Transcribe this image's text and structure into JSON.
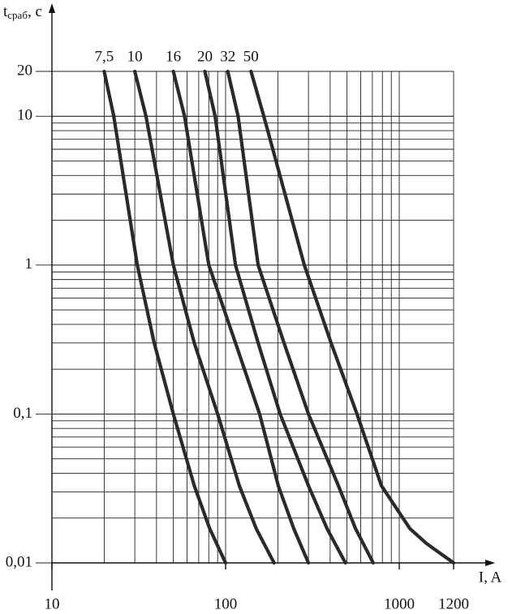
{
  "chart_data": {
    "type": "line",
    "xlabel": "I, A",
    "ylabel": {
      "symbol": "t",
      "subscript": "сраб",
      "unit": ", с"
    },
    "log_x": true,
    "log_y": true,
    "grid": true,
    "xlim": [
      10,
      1200
    ],
    "ylim": [
      0.01,
      20
    ],
    "xticks": [
      10,
      100,
      1000,
      1200
    ],
    "yticks": [
      {
        "value": 0.01,
        "label": "0,01"
      },
      {
        "value": 0.1,
        "label": "0,1"
      },
      1,
      10,
      20
    ],
    "series": [
      {
        "name": "7,5",
        "color": "#2a2a2a",
        "x": [
          20,
          22.7,
          31,
          38.8,
          50,
          66,
          81,
          100
        ],
        "values": [
          20,
          10,
          1,
          0.3,
          0.1,
          0.033,
          0.017,
          0.01
        ]
      },
      {
        "name": "10",
        "color": "#2a2a2a",
        "x": [
          30,
          34.8,
          50,
          66,
          90,
          120,
          150,
          190
        ],
        "values": [
          20,
          10,
          1,
          0.3,
          0.1,
          0.033,
          0.017,
          0.01
        ]
      },
      {
        "name": "16",
        "color": "#2a2a2a",
        "x": [
          50,
          58,
          80,
          114,
          157,
          201,
          247,
          300
        ],
        "values": [
          20,
          10,
          1,
          0.3,
          0.1,
          0.033,
          0.017,
          0.01
        ]
      },
      {
        "name": "20",
        "color": "#2a2a2a",
        "x": [
          76,
          87,
          114,
          154,
          206,
          300,
          384,
          490
        ],
        "values": [
          20,
          10,
          1,
          0.3,
          0.1,
          0.033,
          0.017,
          0.01
        ]
      },
      {
        "name": "32",
        "color": "#2a2a2a",
        "x": [
          103,
          118,
          154,
          217,
          300,
          446,
          560,
          708
        ],
        "values": [
          20,
          10,
          1,
          0.3,
          0.1,
          0.033,
          0.017,
          0.01
        ]
      },
      {
        "name": "50",
        "color": "#2a2a2a",
        "x": [
          140,
          166,
          284,
          405,
          571,
          789,
          1039,
          1100,
          1200
        ],
        "values": [
          20,
          10,
          1,
          0.3,
          0.1,
          0.033,
          0.017,
          0.0135,
          0.01
        ]
      }
    ]
  }
}
